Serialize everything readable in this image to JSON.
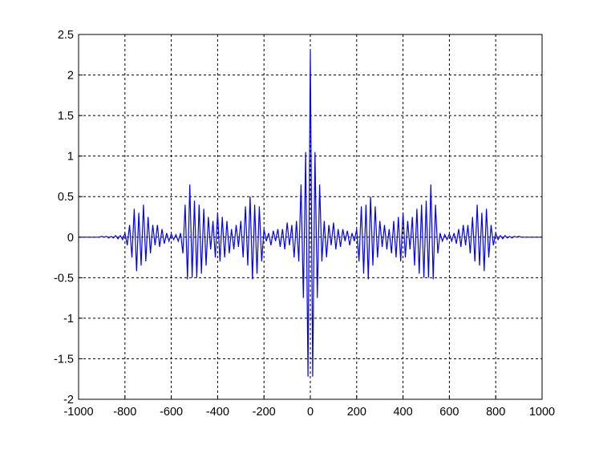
{
  "chart_data": {
    "type": "line",
    "title": "",
    "xlabel": "",
    "ylabel": "",
    "xlim": [
      -1000,
      1000
    ],
    "ylim": [
      -2,
      2.5
    ],
    "xticks": [
      "-1000",
      "-800",
      "-600",
      "-400",
      "-200",
      "0",
      "200",
      "400",
      "600",
      "800",
      "1000"
    ],
    "yticks": [
      "-2",
      "-1.5",
      "-1",
      "-0.5",
      "0",
      "0.5",
      "1",
      "1.5",
      "2",
      "2.5"
    ],
    "grid": true,
    "line_color": "#0000ff",
    "x_step": 10,
    "half_x_start": 0,
    "symmetric_about_zero": true,
    "half_values": [
      2.3,
      -1.72,
      1.05,
      -0.75,
      0.65,
      -0.3,
      0.2,
      -0.25,
      0.15,
      -0.1,
      0.18,
      -0.15,
      0.1,
      -0.12,
      0.1,
      -0.05,
      0.08,
      -0.1,
      0.05,
      -0.05,
      0.1,
      -0.3,
      0.38,
      -0.45,
      0.4,
      -0.52,
      0.5,
      -0.35,
      0.38,
      -0.25,
      0.2,
      -0.12,
      0.15,
      -0.15,
      0.1,
      -0.2,
      0.2,
      -0.25,
      0.25,
      -0.3,
      0.3,
      -0.25,
      0.2,
      -0.15,
      0.25,
      -0.35,
      0.35,
      -0.45,
      0.4,
      -0.5,
      0.45,
      -0.5,
      0.65,
      -0.52,
      0.4,
      -0.2,
      0.05,
      -0.05,
      0.03,
      -0.03,
      0.04,
      -0.05,
      0.05,
      -0.08,
      0.1,
      -0.12,
      0.15,
      -0.1,
      0.15,
      -0.2,
      0.25,
      -0.3,
      0.4,
      -0.35,
      0.3,
      -0.42,
      0.35,
      -0.25,
      0.15,
      -0.1,
      0.05,
      -0.03,
      0.02,
      -0.02,
      0.02,
      -0.01,
      0.01,
      -0.01,
      0.01,
      0,
      0.01,
      0,
      0,
      0,
      0,
      0,
      0,
      0,
      0,
      0,
      0
    ]
  }
}
